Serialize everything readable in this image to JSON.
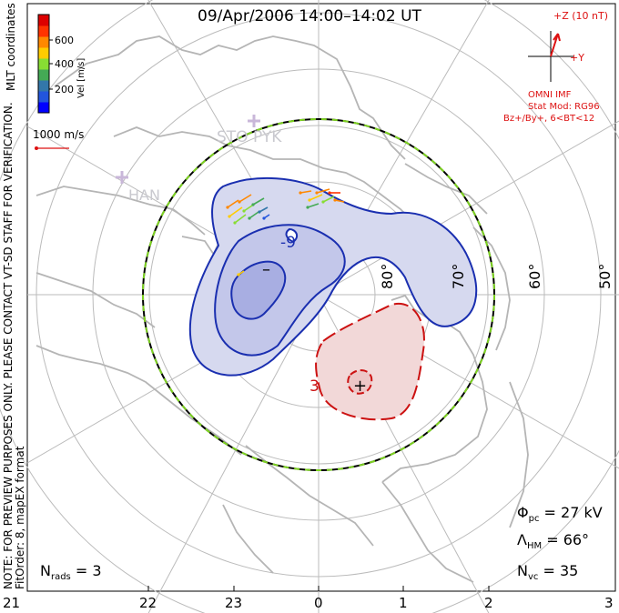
{
  "title": "09/Apr/2006 14:00–14:02 UT",
  "left_notes": {
    "coord": "MLT coordinates",
    "note": "NOTE: FOR PREVIEW PURPOSES ONLY. PLEASE CONTACT VT-SD STAFF FOR VERIFICATION.",
    "fit": "FitOrder: 8, mapEX format"
  },
  "velocity_scale": {
    "label": "Vel [m/s]",
    "ticks": [
      "600",
      "400",
      "200"
    ],
    "colors": [
      "#0000ff",
      "#2255dd",
      "#3377aa",
      "#44aa55",
      "#88dd33",
      "#ffcc00",
      "#ff8800",
      "#ff3300",
      "#dd0000"
    ],
    "ref_label": "1000 m/s"
  },
  "imf": {
    "z_label": "+Z (10 nT)",
    "y_label": "+Y",
    "source": "OMNI IMF",
    "model": "Stat Mod: RG96",
    "condition": "Bz+/By+, 6<BT<12"
  },
  "stations": [
    "STO",
    "PYK",
    "HAN"
  ],
  "lat_labels": [
    "80°",
    "70°",
    "60°",
    "50°"
  ],
  "contour_labels": {
    "min": "-9",
    "minus": "–",
    "max": "3",
    "plus": "+"
  },
  "stats": {
    "phi_label": "Φ",
    "phi_sub": "pc",
    "phi_value": "= 27 kV",
    "lambda_label": "Λ",
    "lambda_sub": "HM",
    "lambda_value": "= 66°",
    "nvc_label": "N",
    "nvc_sub": "vc",
    "nvc_value": "= 35",
    "nrads_label": "N",
    "nrads_sub": "rads",
    "nrads_value": "= 3"
  },
  "mlt_ticks": [
    "21",
    "22",
    "23",
    "0",
    "1",
    "2",
    "3"
  ],
  "colors": {
    "negative_contour": "#1a2fb0",
    "positive_contour": "#cc1111",
    "grid": "#bbbbbb",
    "coast": "#b5b5b5",
    "hmb_outer": "#000000",
    "hmb_dash": "#7ed321"
  }
}
